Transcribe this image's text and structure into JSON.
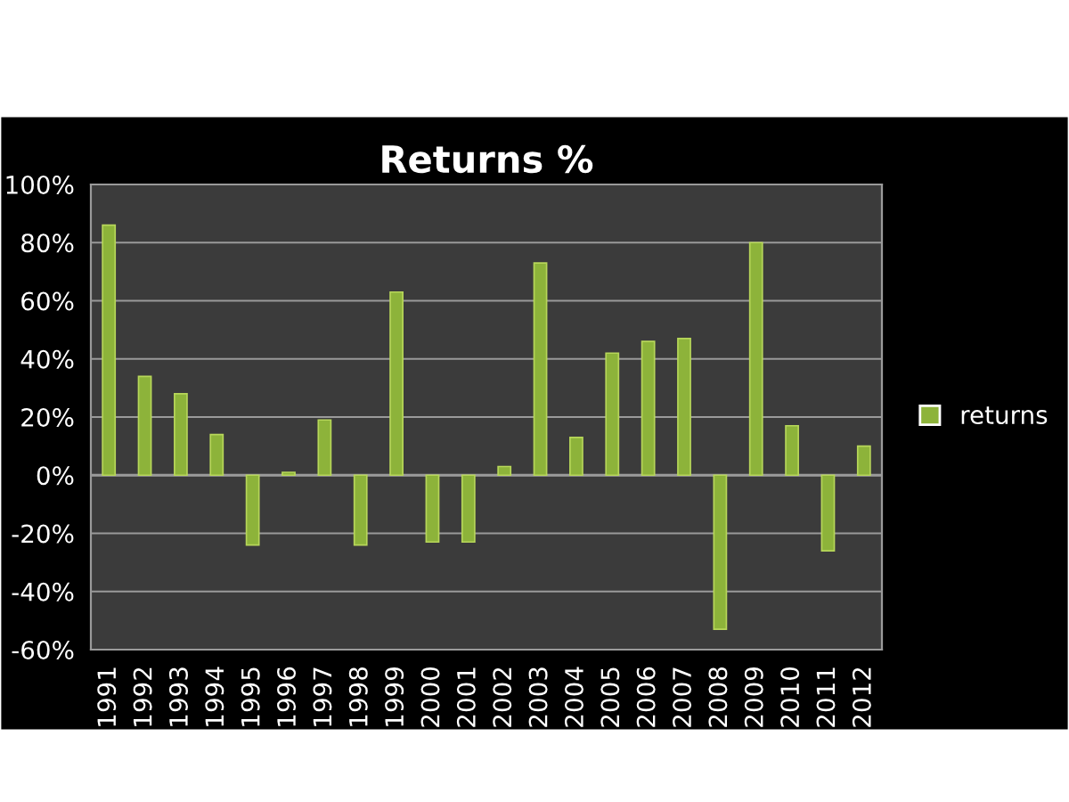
{
  "chart_data": {
    "type": "bar",
    "title": "Returns %",
    "categories": [
      "1991",
      "1992",
      "1993",
      "1994",
      "1995",
      "1996",
      "1997",
      "1998",
      "1999",
      "2000",
      "2001",
      "2002",
      "2003",
      "2004",
      "2005",
      "2006",
      "2007",
      "2008",
      "2009",
      "2010",
      "2011",
      "2012"
    ],
    "series": [
      {
        "name": "returns",
        "color": "#8db33a",
        "values": [
          86,
          34,
          28,
          14,
          -24,
          1,
          19,
          -24,
          63,
          -23,
          -23,
          3,
          73,
          13,
          42,
          46,
          47,
          -53,
          80,
          17,
          -26,
          10
        ]
      }
    ],
    "ylim": [
      -60,
      100
    ],
    "yticks": [
      {
        "value": -60,
        "label": "-60%"
      },
      {
        "value": -40,
        "label": "-40%"
      },
      {
        "value": -20,
        "label": "-20%"
      },
      {
        "value": 0,
        "label": "0%"
      },
      {
        "value": 20,
        "label": "20%"
      },
      {
        "value": 40,
        "label": "40%"
      },
      {
        "value": 60,
        "label": "60%"
      },
      {
        "value": 80,
        "label": "80%"
      },
      {
        "value": 100,
        "label": "100%"
      }
    ],
    "grid": "y",
    "legend": "right"
  }
}
